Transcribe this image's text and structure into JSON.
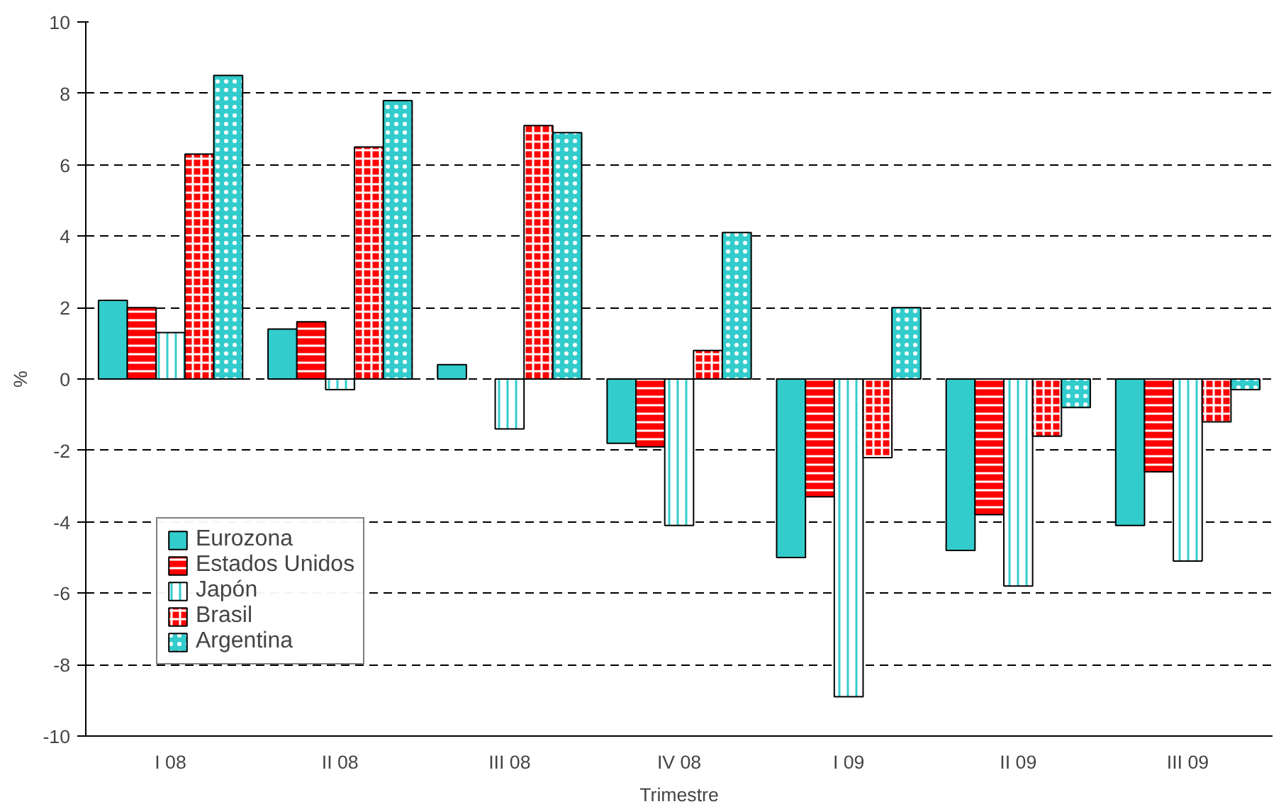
{
  "chart_data": {
    "type": "bar",
    "xlabel": "Trimestre",
    "ylabel": "%",
    "categories": [
      "I 08",
      "II 08",
      "III 08",
      "IV 08",
      "I 09",
      "II 09",
      "III 09"
    ],
    "series": [
      {
        "name": "Eurozona",
        "color": "#33cccc",
        "values": [
          2.2,
          1.4,
          0.4,
          -1.8,
          -5.0,
          -4.8,
          -4.1
        ]
      },
      {
        "name": "Estados Unidos",
        "color": "#ff0000",
        "values": [
          2.0,
          1.6,
          null,
          -1.9,
          -3.3,
          -3.8,
          -2.6
        ]
      },
      {
        "name": "Japón",
        "color": "#ffffff",
        "values": [
          1.3,
          -0.3,
          -1.4,
          -4.1,
          -8.9,
          -5.8,
          -5.1
        ]
      },
      {
        "name": "Brasil",
        "color": "#ff0000",
        "values": [
          6.3,
          6.5,
          7.1,
          0.8,
          -2.2,
          -1.6,
          -1.2
        ]
      },
      {
        "name": "Argentina",
        "color": "#33cccc",
        "values": [
          8.5,
          7.8,
          6.9,
          4.1,
          2.0,
          -0.8,
          -0.3
        ]
      }
    ],
    "ylim": [
      -10,
      10
    ],
    "yticks": [
      -10,
      -8,
      -6,
      -4,
      -2,
      0,
      2,
      4,
      6,
      8,
      10
    ],
    "grid": "y",
    "legend": "bottom left"
  }
}
